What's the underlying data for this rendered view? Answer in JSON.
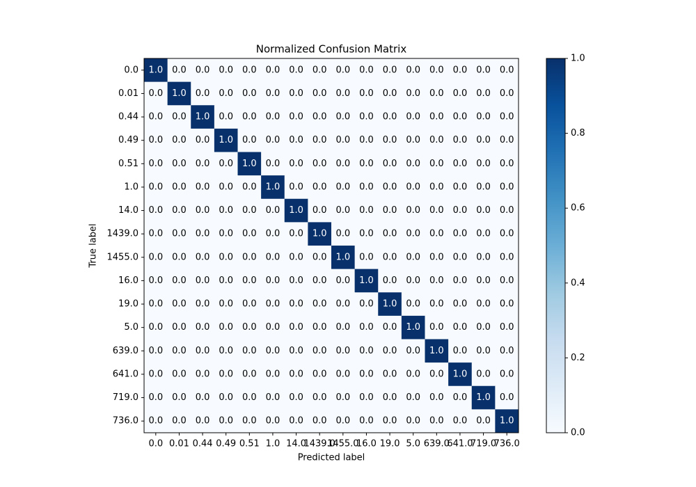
{
  "chart_data": {
    "type": "heatmap",
    "title": "Normalized Confusion Matrix",
    "x_label": "Predicted label",
    "y_label": "True label",
    "x_categories": [
      "0.0",
      "0.01",
      "0.44",
      "0.49",
      "0.51",
      "1.0",
      "14.0",
      "1439.0",
      "1455.0",
      "16.0",
      "19.0",
      "5.0",
      "639.0",
      "641.0",
      "719.0",
      "736.0"
    ],
    "y_categories": [
      "0.0",
      "0.01",
      "0.44",
      "0.49",
      "0.51",
      "1.0",
      "14.0",
      "1439.0",
      "1455.0",
      "16.0",
      "19.0",
      "5.0",
      "639.0",
      "641.0",
      "719.0",
      "736.0"
    ],
    "values": [
      [
        1,
        0,
        0,
        0,
        0,
        0,
        0,
        0,
        0,
        0,
        0,
        0,
        0,
        0,
        0,
        0
      ],
      [
        0,
        1,
        0,
        0,
        0,
        0,
        0,
        0,
        0,
        0,
        0,
        0,
        0,
        0,
        0,
        0
      ],
      [
        0,
        0,
        1,
        0,
        0,
        0,
        0,
        0,
        0,
        0,
        0,
        0,
        0,
        0,
        0,
        0
      ],
      [
        0,
        0,
        0,
        1,
        0,
        0,
        0,
        0,
        0,
        0,
        0,
        0,
        0,
        0,
        0,
        0
      ],
      [
        0,
        0,
        0,
        0,
        1,
        0,
        0,
        0,
        0,
        0,
        0,
        0,
        0,
        0,
        0,
        0
      ],
      [
        0,
        0,
        0,
        0,
        0,
        1,
        0,
        0,
        0,
        0,
        0,
        0,
        0,
        0,
        0,
        0
      ],
      [
        0,
        0,
        0,
        0,
        0,
        0,
        1,
        0,
        0,
        0,
        0,
        0,
        0,
        0,
        0,
        0
      ],
      [
        0,
        0,
        0,
        0,
        0,
        0,
        0,
        1,
        0,
        0,
        0,
        0,
        0,
        0,
        0,
        0
      ],
      [
        0,
        0,
        0,
        0,
        0,
        0,
        0,
        0,
        1,
        0,
        0,
        0,
        0,
        0,
        0,
        0
      ],
      [
        0,
        0,
        0,
        0,
        0,
        0,
        0,
        0,
        0,
        1,
        0,
        0,
        0,
        0,
        0,
        0
      ],
      [
        0,
        0,
        0,
        0,
        0,
        0,
        0,
        0,
        0,
        0,
        1,
        0,
        0,
        0,
        0,
        0
      ],
      [
        0,
        0,
        0,
        0,
        0,
        0,
        0,
        0,
        0,
        0,
        0,
        1,
        0,
        0,
        0,
        0
      ],
      [
        0,
        0,
        0,
        0,
        0,
        0,
        0,
        0,
        0,
        0,
        0,
        0,
        1,
        0,
        0,
        0
      ],
      [
        0,
        0,
        0,
        0,
        0,
        0,
        0,
        0,
        0,
        0,
        0,
        0,
        0,
        1,
        0,
        0
      ],
      [
        0,
        0,
        0,
        0,
        0,
        0,
        0,
        0,
        0,
        0,
        0,
        0,
        0,
        0,
        1,
        0
      ],
      [
        0,
        0,
        0,
        0,
        0,
        0,
        0,
        0,
        0,
        0,
        0,
        0,
        0,
        0,
        0,
        1
      ]
    ],
    "value_labels": [
      [
        "1.0",
        "0.0",
        "0.0",
        "0.0",
        "0.0",
        "0.0",
        "0.0",
        "0.0",
        "0.0",
        "0.0",
        "0.0",
        "0.0",
        "0.0",
        "0.0",
        "0.0",
        "0.0"
      ],
      [
        "0.0",
        "1.0",
        "0.0",
        "0.0",
        "0.0",
        "0.0",
        "0.0",
        "0.0",
        "0.0",
        "0.0",
        "0.0",
        "0.0",
        "0.0",
        "0.0",
        "0.0",
        "0.0"
      ],
      [
        "0.0",
        "0.0",
        "1.0",
        "0.0",
        "0.0",
        "0.0",
        "0.0",
        "0.0",
        "0.0",
        "0.0",
        "0.0",
        "0.0",
        "0.0",
        "0.0",
        "0.0",
        "0.0"
      ],
      [
        "0.0",
        "0.0",
        "0.0",
        "1.0",
        "0.0",
        "0.0",
        "0.0",
        "0.0",
        "0.0",
        "0.0",
        "0.0",
        "0.0",
        "0.0",
        "0.0",
        "0.0",
        "0.0"
      ],
      [
        "0.0",
        "0.0",
        "0.0",
        "0.0",
        "1.0",
        "0.0",
        "0.0",
        "0.0",
        "0.0",
        "0.0",
        "0.0",
        "0.0",
        "0.0",
        "0.0",
        "0.0",
        "0.0"
      ],
      [
        "0.0",
        "0.0",
        "0.0",
        "0.0",
        "0.0",
        "1.0",
        "0.0",
        "0.0",
        "0.0",
        "0.0",
        "0.0",
        "0.0",
        "0.0",
        "0.0",
        "0.0",
        "0.0"
      ],
      [
        "0.0",
        "0.0",
        "0.0",
        "0.0",
        "0.0",
        "0.0",
        "1.0",
        "0.0",
        "0.0",
        "0.0",
        "0.0",
        "0.0",
        "0.0",
        "0.0",
        "0.0",
        "0.0"
      ],
      [
        "0.0",
        "0.0",
        "0.0",
        "0.0",
        "0.0",
        "0.0",
        "0.0",
        "1.0",
        "0.0",
        "0.0",
        "0.0",
        "0.0",
        "0.0",
        "0.0",
        "0.0",
        "0.0"
      ],
      [
        "0.0",
        "0.0",
        "0.0",
        "0.0",
        "0.0",
        "0.0",
        "0.0",
        "0.0",
        "1.0",
        "0.0",
        "0.0",
        "0.0",
        "0.0",
        "0.0",
        "0.0",
        "0.0"
      ],
      [
        "0.0",
        "0.0",
        "0.0",
        "0.0",
        "0.0",
        "0.0",
        "0.0",
        "0.0",
        "0.0",
        "1.0",
        "0.0",
        "0.0",
        "0.0",
        "0.0",
        "0.0",
        "0.0"
      ],
      [
        "0.0",
        "0.0",
        "0.0",
        "0.0",
        "0.0",
        "0.0",
        "0.0",
        "0.0",
        "0.0",
        "0.0",
        "1.0",
        "0.0",
        "0.0",
        "0.0",
        "0.0",
        "0.0"
      ],
      [
        "0.0",
        "0.0",
        "0.0",
        "0.0",
        "0.0",
        "0.0",
        "0.0",
        "0.0",
        "0.0",
        "0.0",
        "0.0",
        "1.0",
        "0.0",
        "0.0",
        "0.0",
        "0.0"
      ],
      [
        "0.0",
        "0.0",
        "0.0",
        "0.0",
        "0.0",
        "0.0",
        "0.0",
        "0.0",
        "0.0",
        "0.0",
        "0.0",
        "0.0",
        "1.0",
        "0.0",
        "0.0",
        "0.0"
      ],
      [
        "0.0",
        "0.0",
        "0.0",
        "0.0",
        "0.0",
        "0.0",
        "0.0",
        "0.0",
        "0.0",
        "0.0",
        "0.0",
        "0.0",
        "0.0",
        "1.0",
        "0.0",
        "0.0"
      ],
      [
        "0.0",
        "0.0",
        "0.0",
        "0.0",
        "0.0",
        "0.0",
        "0.0",
        "0.0",
        "0.0",
        "0.0",
        "0.0",
        "0.0",
        "0.0",
        "0.0",
        "1.0",
        "0.0"
      ],
      [
        "0.0",
        "0.0",
        "0.0",
        "0.0",
        "0.0",
        "0.0",
        "0.0",
        "0.0",
        "0.0",
        "0.0",
        "0.0",
        "0.0",
        "0.0",
        "0.0",
        "0.0",
        "1.0"
      ]
    ],
    "colormap": [
      "#f7fbff",
      "#deebf7",
      "#c6dbef",
      "#9ecae1",
      "#6baed6",
      "#4292c6",
      "#2171b5",
      "#08519c",
      "#08306b"
    ],
    "colorbar_lim": [
      0,
      1
    ],
    "colorbar_ticks": [
      {
        "value": 0,
        "label": "0.0"
      },
      0.2,
      0.4,
      0.6,
      0.8,
      {
        "value": 1,
        "label": "1.0"
      }
    ]
  }
}
